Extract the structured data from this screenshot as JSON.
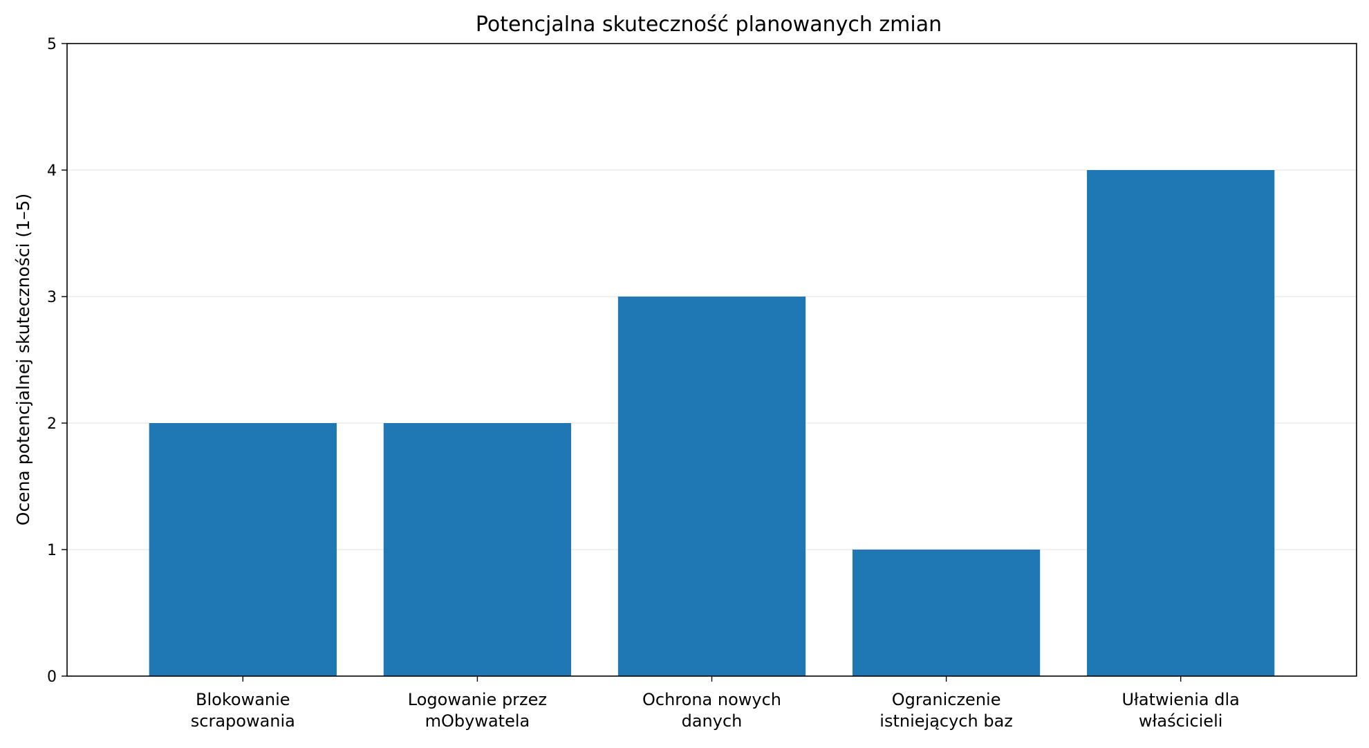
{
  "chart_data": {
    "type": "bar",
    "title": "Potencjalna skuteczność planowanych zmian",
    "xlabel": "",
    "ylabel": "Ocena potencjalnej skuteczności (1–5)",
    "categories": [
      [
        "Blokowanie",
        "scrapowania"
      ],
      [
        "Logowanie przez",
        "mObywatela"
      ],
      [
        "Ochrona nowych",
        "danych"
      ],
      [
        "Ograniczenie",
        "istniejących baz"
      ],
      [
        "Ułatwienia dla",
        "właścicieli"
      ]
    ],
    "values": [
      2,
      2,
      3,
      1,
      4
    ],
    "ylim": [
      0,
      5
    ],
    "yticks": [
      "0",
      "1",
      "2",
      "3",
      "4",
      "5"
    ],
    "grid": "horizontal",
    "bar_color": "#1f77b4",
    "grid_color": "#e6e6e6"
  }
}
